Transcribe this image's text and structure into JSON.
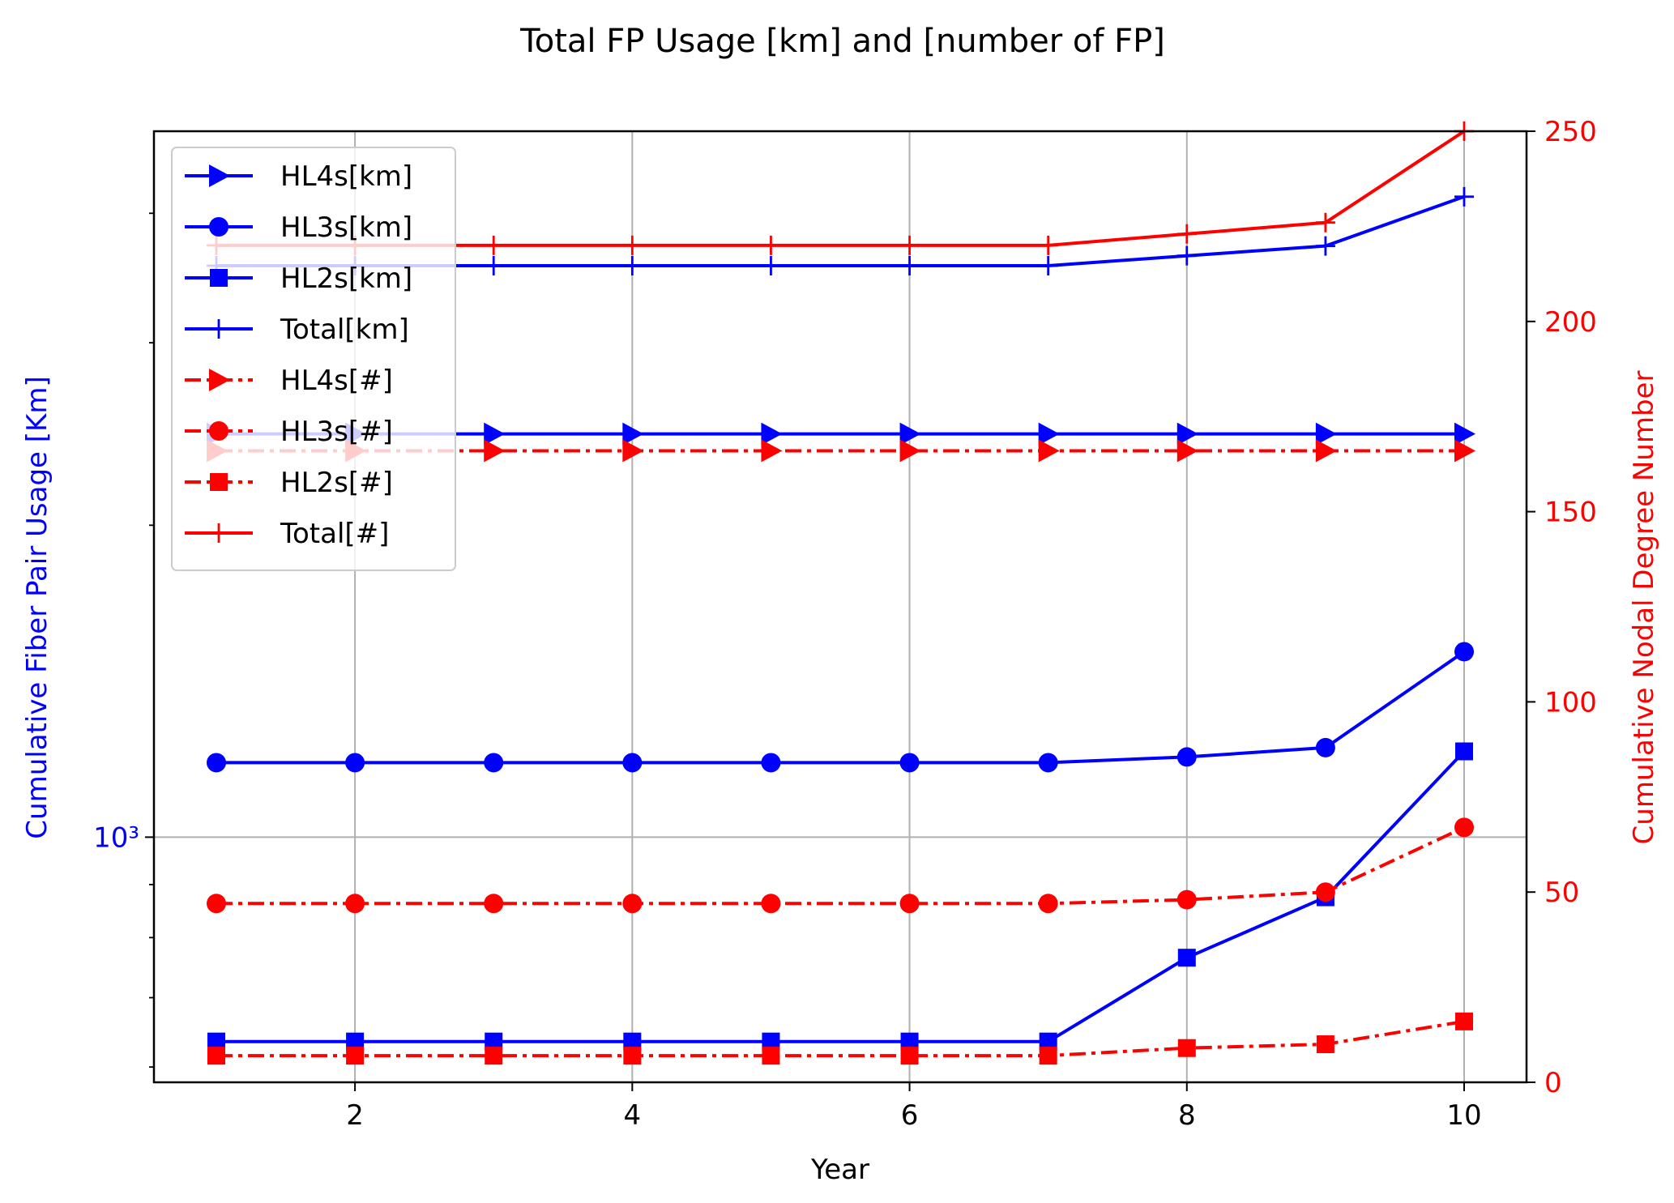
{
  "chart_data": {
    "type": "line",
    "title": "Total FP Usage [km] and [number of FP]",
    "xlabel": "Year",
    "ylabel_left": "Cumulative Fiber Pair Usage [Km]",
    "ylabel_right": "Cumulative Nodal Degree Number",
    "x": [
      1,
      2,
      3,
      4,
      5,
      6,
      7,
      8,
      9,
      10
    ],
    "xlim": [
      0.55,
      10.45
    ],
    "xticks": [
      2,
      4,
      6,
      8,
      10
    ],
    "left_axis": {
      "scale": "log",
      "ylim": [
        580,
        4800
      ],
      "ticks": [
        {
          "value": 1000,
          "label": "10³"
        }
      ],
      "minor_ticks": [
        600,
        700,
        800,
        900,
        2000,
        3000,
        4000
      ],
      "color": "#0000ff"
    },
    "right_axis": {
      "scale": "linear",
      "ylim": [
        0,
        250
      ],
      "ticks": [
        0,
        50,
        100,
        150,
        200,
        250
      ],
      "color": "#ff0000"
    },
    "grid": true,
    "legend_position": "top-left",
    "series": [
      {
        "name": "HL4s[km]",
        "axis": "left",
        "color": "#0000ff",
        "marker": "triangle-right",
        "dash": "solid",
        "values": [
          2450,
          2450,
          2450,
          2450,
          2450,
          2450,
          2450,
          2450,
          2450,
          2450
        ]
      },
      {
        "name": "HL3s[km]",
        "axis": "left",
        "color": "#0000ff",
        "marker": "circle",
        "dash": "solid",
        "values": [
          1180,
          1180,
          1180,
          1180,
          1180,
          1180,
          1180,
          1195,
          1220,
          1510
        ]
      },
      {
        "name": "HL2s[km]",
        "axis": "left",
        "color": "#0000ff",
        "marker": "square",
        "dash": "solid",
        "values": [
          635,
          635,
          635,
          635,
          635,
          635,
          635,
          765,
          875,
          1210
        ]
      },
      {
        "name": "Total[km]",
        "axis": "left",
        "color": "#0000ff",
        "marker": "plus",
        "dash": "solid",
        "values": [
          3560,
          3560,
          3560,
          3560,
          3560,
          3560,
          3560,
          3640,
          3720,
          4150
        ]
      },
      {
        "name": "HL4s[#]",
        "axis": "right",
        "color": "#ff0000",
        "marker": "triangle-right",
        "dash": "dashdot",
        "values": [
          166,
          166,
          166,
          166,
          166,
          166,
          166,
          166,
          166,
          166
        ]
      },
      {
        "name": "HL3s[#]",
        "axis": "right",
        "color": "#ff0000",
        "marker": "circle",
        "dash": "dashdot",
        "values": [
          47,
          47,
          47,
          47,
          47,
          47,
          47,
          48,
          50,
          67
        ]
      },
      {
        "name": "HL2s[#]",
        "axis": "right",
        "color": "#ff0000",
        "marker": "square",
        "dash": "dashdot",
        "values": [
          7,
          7,
          7,
          7,
          7,
          7,
          7,
          9,
          10,
          16
        ]
      },
      {
        "name": "Total[#]",
        "axis": "right",
        "color": "#ff0000",
        "marker": "plus",
        "dash": "solid",
        "values": [
          220,
          220,
          220,
          220,
          220,
          220,
          220,
          223,
          226,
          250
        ]
      }
    ]
  }
}
